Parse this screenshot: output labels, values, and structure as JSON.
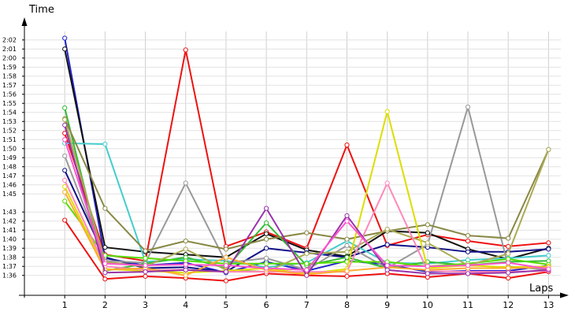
{
  "chart_data": {
    "type": "line",
    "xlabel": "Laps",
    "ylabel": "Time",
    "x": [
      1,
      2,
      3,
      4,
      5,
      6,
      7,
      8,
      9,
      10,
      11,
      12,
      13
    ],
    "xlim": [
      0,
      13.5
    ],
    "ylim": [
      93.8,
      124.5
    ],
    "y_tick_values": [
      96,
      97,
      98,
      99,
      100,
      101,
      102,
      103,
      105,
      106,
      107,
      108,
      109,
      110,
      111,
      112,
      113,
      114,
      115,
      116,
      117,
      118,
      119,
      120,
      121,
      122
    ],
    "y_tick_labels": [
      "1:36",
      "1:37",
      "1:38",
      "1:39",
      "1:40",
      "1:41",
      "1:42",
      "1:43",
      "1:45",
      "1:46",
      "1:47",
      "1:48",
      "1:49",
      "1:50",
      "1:51",
      "1:52",
      "1:53",
      "1:54",
      "1:55",
      "1:56",
      "1:57",
      "1:58",
      "1:59",
      "2:00",
      "2:01",
      "2:02"
    ],
    "grid": true,
    "legend": "none",
    "series": [
      {
        "color": "#ee1111",
        "values": [
          102.1,
          95.6,
          95.9,
          95.7,
          95.4,
          96.2,
          96.0,
          95.9,
          96.2,
          95.8,
          96.2,
          95.7,
          96.4
        ]
      },
      {
        "color": "#ee1111",
        "values": [
          111.7,
          98.3,
          97.6,
          120.9,
          99.2,
          100.8,
          99.0,
          110.4,
          99.3,
          100.5,
          99.8,
          99.2,
          99.6
        ]
      },
      {
        "color": "#2222cc",
        "values": [
          122.2,
          97.9,
          97.1,
          97.4,
          96.3,
          97.5,
          96.5,
          97.6,
          97.2,
          96.4,
          96.5,
          96.5,
          97.1
        ]
      },
      {
        "color": "#111111",
        "values": [
          121.0,
          99.1,
          98.6,
          98.3,
          98.0,
          100.6,
          98.8,
          98.1,
          100.9,
          100.7,
          98.9,
          97.8,
          99.0
        ]
      },
      {
        "color": "#111188",
        "values": [
          107.6,
          98.0,
          96.8,
          96.9,
          96.4,
          99.0,
          98.5,
          98.0,
          99.4,
          99.1,
          98.6,
          98.6,
          98.9
        ]
      },
      {
        "color": "#44cccc",
        "values": [
          110.6,
          110.5,
          97.5,
          97.8,
          97.6,
          96.9,
          97.4,
          99.8,
          97.4,
          97.3,
          97.7,
          97.9,
          98.2
        ]
      },
      {
        "color": "#999999",
        "values": [
          109.2,
          97.6,
          97.4,
          106.2,
          97.4,
          97.9,
          96.6,
          99.3,
          96.8,
          99.4,
          114.6,
          97.0,
          96.6
        ]
      },
      {
        "color": "#33bb33",
        "values": [
          114.5,
          96.5,
          97.3,
          98.0,
          96.8,
          101.8,
          97.1,
          98.0,
          96.8,
          97.5,
          97.1,
          97.5,
          97.6
        ]
      },
      {
        "color": "#55dd00",
        "values": [
          104.2,
          98.2,
          97.9,
          97.6,
          97.3,
          97.3,
          97.3,
          97.5,
          97.5,
          97.0,
          97.3,
          97.8,
          97.2
        ]
      },
      {
        "color": "#888844",
        "values": [
          113.3,
          103.4,
          98.7,
          99.8,
          98.9,
          100.0,
          100.7,
          100.0,
          100.9,
          101.6,
          100.4,
          100.1,
          109.9
        ]
      },
      {
        "color": "#aaaa55",
        "values": [
          113.2,
          97.5,
          97.0,
          98.9,
          96.6,
          96.4,
          98.4,
          98.6,
          101.1,
          99.6,
          97.1,
          98.4,
          109.9
        ]
      },
      {
        "color": "#dddd00",
        "values": [
          105.8,
          96.7,
          96.5,
          96.3,
          96.5,
          96.8,
          96.2,
          96.7,
          114.1,
          96.8,
          97.1,
          96.9,
          97.0
        ]
      },
      {
        "color": "#ff88bb",
        "values": [
          106.5,
          97.0,
          96.6,
          96.6,
          96.4,
          96.4,
          96.4,
          96.4,
          106.2,
          96.5,
          96.4,
          96.4,
          96.5
        ]
      },
      {
        "color": "#ffaa33",
        "values": [
          105.2,
          96.6,
          96.8,
          96.0,
          98.0,
          96.6,
          96.1,
          96.5,
          96.9,
          96.6,
          96.8,
          96.8,
          96.9
        ]
      },
      {
        "color": "#9933aa",
        "values": [
          112.6,
          96.3,
          96.4,
          96.6,
          96.4,
          103.4,
          96.0,
          102.6,
          96.6,
          96.2,
          96.2,
          96.3,
          96.6
        ]
      },
      {
        "color": "#ff55cc",
        "values": [
          111.0,
          97.3,
          97.1,
          97.2,
          97.1,
          96.8,
          96.6,
          102.0,
          97.1,
          97.0,
          97.1,
          97.4,
          96.7
        ]
      }
    ]
  }
}
